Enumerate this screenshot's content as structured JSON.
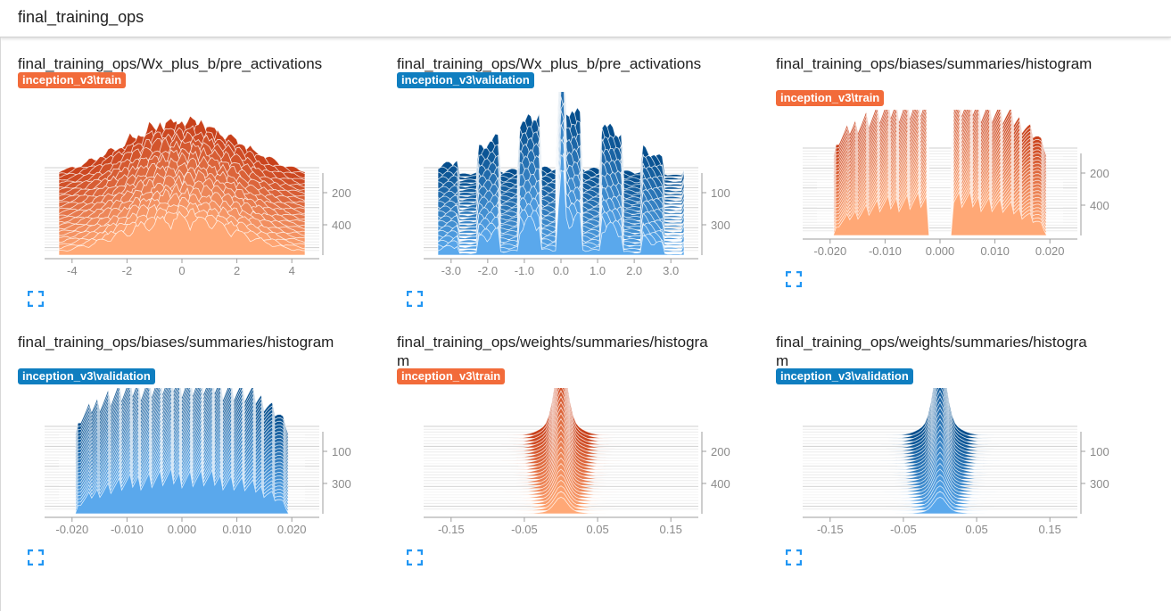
{
  "header": {
    "title": "final_training_ops"
  },
  "colors": {
    "train_dark": "#c8401a",
    "train_light": "#ffa876",
    "train_badge": "#f26b3a",
    "val_dark": "#044d8c",
    "val_light": "#5aa8ec",
    "val_badge": "#0f7ec0",
    "axis": "#9e9e9e",
    "tick_text": "#8a8a8a"
  },
  "cards": [
    {
      "title": "final_training_ops/Wx_plus_b/pre_activations",
      "run": "inception_v3\\train",
      "run_kind": "train",
      "x_ticks": [
        "-4",
        "-2",
        "0",
        "2",
        "4"
      ],
      "y_ticks": [
        "200",
        "400"
      ],
      "shape": "jagged",
      "icon": "fullscreen-icon"
    },
    {
      "title": "final_training_ops/Wx_plus_b/pre_activations",
      "run": "inception_v3\\validation",
      "run_kind": "validation",
      "x_ticks": [
        "-3.0",
        "-2.0",
        "-1.0",
        "0.0",
        "1.0",
        "2.0",
        "3.0"
      ],
      "y_ticks": [
        "100",
        "300"
      ],
      "shape": "comb",
      "icon": "fullscreen-icon"
    },
    {
      "title": "final_training_ops/biases/summaries/histogram",
      "run": "inception_v3\\train",
      "run_kind": "train",
      "x_ticks": [
        "-0.020",
        "-0.010",
        "0.000",
        "0.010",
        "0.020"
      ],
      "y_ticks": [
        "200",
        "400"
      ],
      "shape": "split-arch",
      "icon": "fullscreen-icon"
    },
    {
      "title": "final_training_ops/biases/summaries/histogram",
      "run": "inception_v3\\validation",
      "run_kind": "validation",
      "x_ticks": [
        "-0.020",
        "-0.010",
        "0.000",
        "0.010",
        "0.020"
      ],
      "y_ticks": [
        "100",
        "300"
      ],
      "shape": "arch",
      "icon": "fullscreen-icon"
    },
    {
      "title": "final_training_ops/weights/summaries/histogram",
      "run": "inception_v3\\train",
      "run_kind": "train",
      "x_ticks": [
        "-0.15",
        "-0.05",
        "0.05",
        "0.15"
      ],
      "y_ticks": [
        "200",
        "400"
      ],
      "shape": "spike",
      "icon": "fullscreen-icon"
    },
    {
      "title": "final_training_ops/weights/summaries/histogram",
      "run": "inception_v3\\validation",
      "run_kind": "validation",
      "x_ticks": [
        "-0.15",
        "-0.05",
        "0.05",
        "0.15"
      ],
      "y_ticks": [
        "100",
        "300"
      ],
      "shape": "spike",
      "icon": "fullscreen-icon"
    }
  ]
}
